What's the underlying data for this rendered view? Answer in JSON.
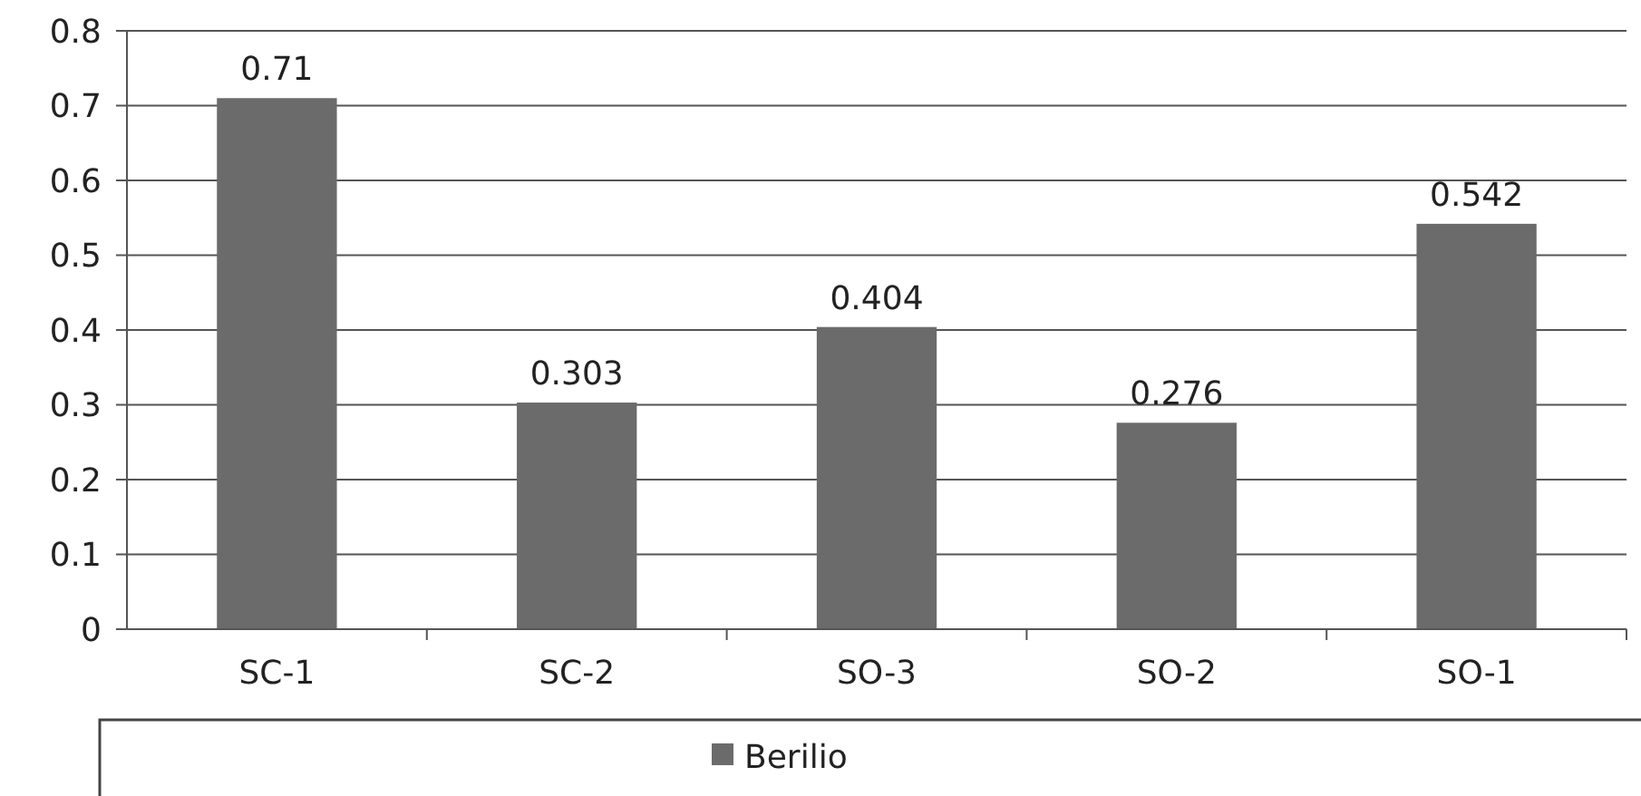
{
  "chart_data": {
    "type": "bar",
    "categories": [
      "SC-1",
      "SC-2",
      "SO-3",
      "SO-2",
      "SO-1"
    ],
    "series": [
      {
        "name": "Berilio",
        "color": "#6b6b6b",
        "values": [
          0.71,
          0.303,
          0.404,
          0.276,
          0.542
        ]
      }
    ],
    "ylim": [
      0,
      0.8
    ],
    "yticks": [
      0,
      0.1,
      0.2,
      0.3,
      0.4,
      0.5,
      0.6,
      0.7,
      0.8
    ],
    "grid": "y",
    "data_labels": true,
    "legend": "bottom"
  }
}
